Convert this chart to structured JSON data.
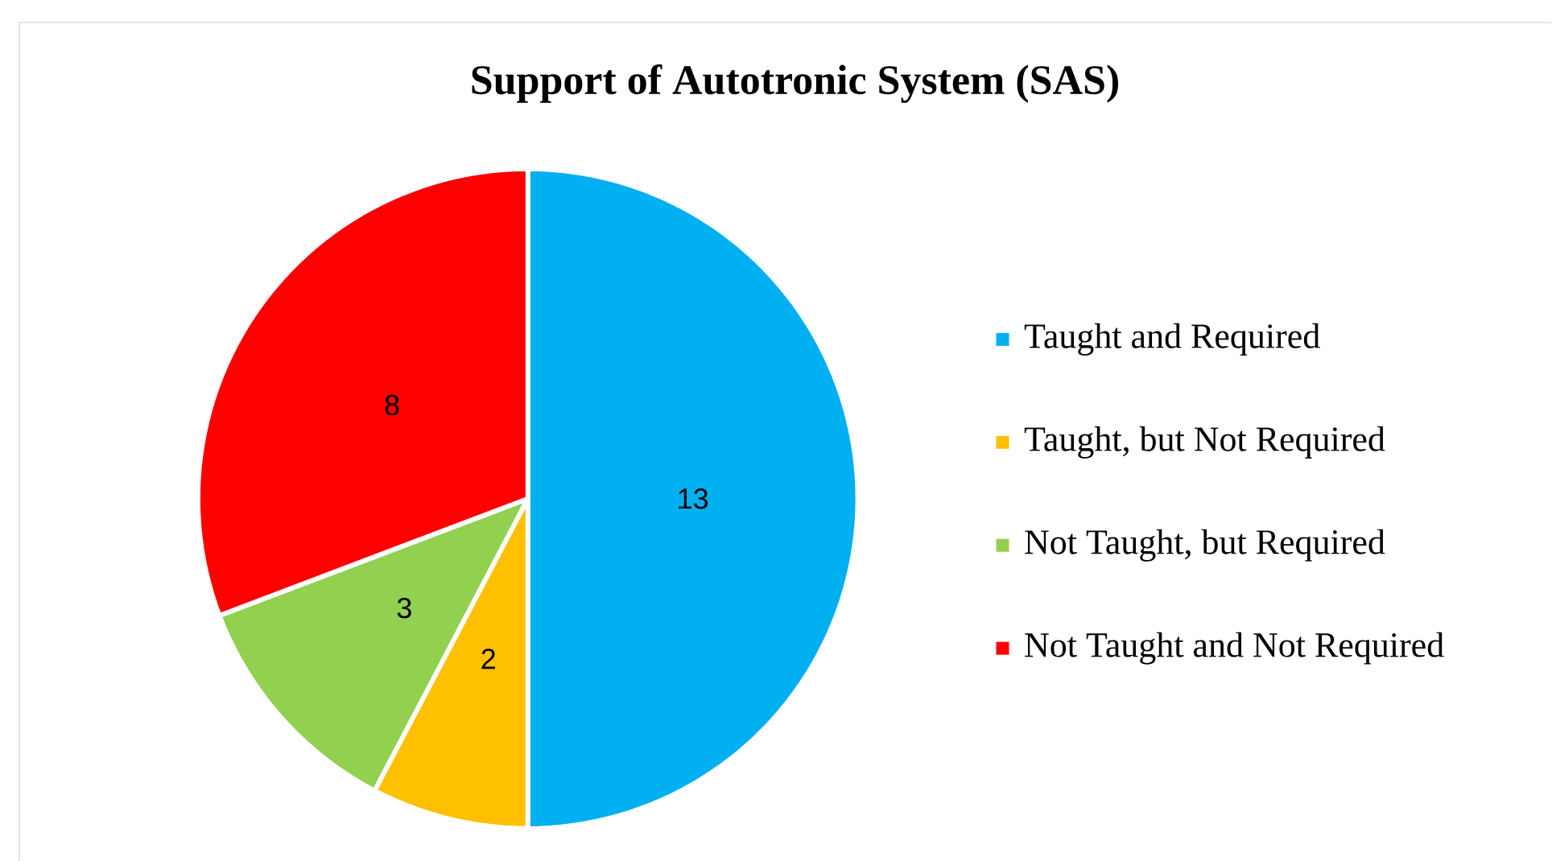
{
  "chart_data": {
    "type": "pie",
    "title": "Support of Autotronic System (SAS)",
    "categories": [
      "Taught and Required",
      "Taught, but Not Required",
      "Not Taught, but Required",
      "Not Taught and Not Required"
    ],
    "values": [
      13,
      2,
      3,
      8
    ],
    "colors": [
      "#00b0f0",
      "#ffc000",
      "#92d050",
      "#ff0000"
    ],
    "data_labels": true,
    "legend": "right"
  }
}
